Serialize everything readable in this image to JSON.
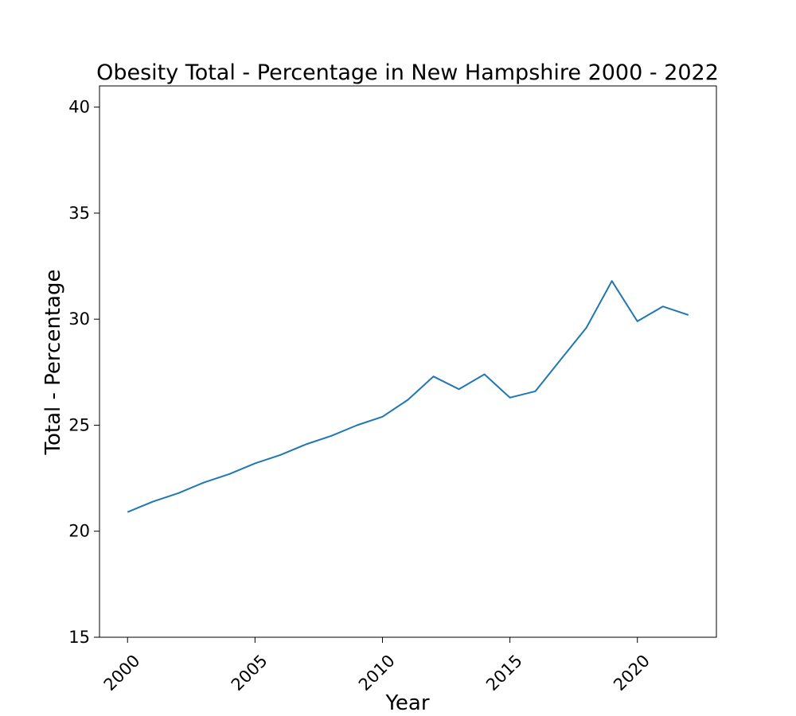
{
  "chart_data": {
    "type": "line",
    "title": "Obesity Total - Percentage in New Hampshire 2000 - 2022",
    "xlabel": "Year",
    "ylabel": "Total - Percentage",
    "xlim": [
      1998.9,
      2023.1
    ],
    "ylim": [
      15,
      41
    ],
    "xticks": [
      2000,
      2005,
      2010,
      2015,
      2020
    ],
    "yticks": [
      15,
      20,
      25,
      30,
      35,
      40
    ],
    "grid": false,
    "line_color": "#1f77b4",
    "series": [
      {
        "x": [
          2000,
          2001,
          2002,
          2003,
          2004,
          2005,
          2006,
          2007,
          2008,
          2009,
          2010,
          2011,
          2012,
          2013,
          2014,
          2015,
          2016,
          2017,
          2018,
          2019,
          2020,
          2021,
          2022
        ],
        "values": [
          20.9,
          21.4,
          21.8,
          22.3,
          22.7,
          23.2,
          23.6,
          24.1,
          24.5,
          25.0,
          25.4,
          26.2,
          27.3,
          26.7,
          27.4,
          26.3,
          26.6,
          28.1,
          29.6,
          31.8,
          29.9,
          30.6,
          30.2
        ]
      }
    ]
  }
}
